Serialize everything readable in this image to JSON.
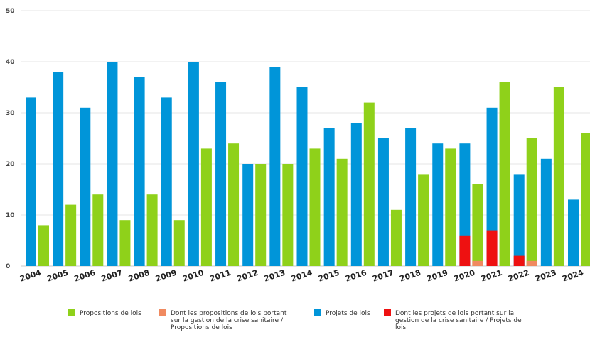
{
  "chart_data": {
    "type": "bar",
    "title": "",
    "xlabel": "",
    "ylabel": "",
    "ylim": [
      0,
      50
    ],
    "yticks": [
      0,
      10,
      20,
      30,
      40,
      50
    ],
    "grid": true,
    "legend_position": "bottom",
    "years": [
      "2004",
      "2005",
      "2006",
      "2007",
      "2008",
      "2009",
      "2010",
      "2011",
      "2012",
      "2013",
      "2014",
      "2015",
      "2016",
      "2017",
      "2018",
      "2019",
      "2020",
      "2021",
      "2022",
      "2023",
      "2024"
    ],
    "groups": [
      {
        "year": "2004",
        "projets": 33,
        "props": 8
      },
      {
        "year": "2005",
        "projets": 38,
        "props": 12
      },
      {
        "year": "2006",
        "projets": 31,
        "props": 14
      },
      {
        "year": "2007",
        "projets": 40,
        "props": 9
      },
      {
        "year": "2008",
        "projets": 37,
        "props": 14
      },
      {
        "year": "2009",
        "projets": 33,
        "props": 9
      },
      {
        "year": "2010",
        "projets": 40,
        "props": 23
      },
      {
        "year": "2011",
        "projets": 36,
        "props": 24
      },
      {
        "year": "2012",
        "projets": 20,
        "props": 20
      },
      {
        "year": "2013",
        "projets": 39,
        "props": 20
      },
      {
        "year": "2014",
        "projets": 35,
        "props": 23
      },
      {
        "year": "2015",
        "projets": 27,
        "props": 21
      },
      {
        "year": "2016",
        "projets": 28,
        "props": 32
      },
      {
        "year": "2017",
        "projets": 25,
        "props": 11
      },
      {
        "year": "2018",
        "projets": 27,
        "props": 18
      },
      {
        "year": "2019",
        "projets": 24,
        "props": 23
      },
      {
        "year": "2020",
        "projets": 24,
        "props": 16
      },
      {
        "year": "2021",
        "projets": 31,
        "props": 36
      },
      {
        "year": "2022",
        "projets": 18,
        "props": 25
      },
      {
        "year": "2023",
        "projets": 21,
        "props": 35
      },
      {
        "year": "2024",
        "projets": 13,
        "props": 26
      }
    ],
    "series": [
      {
        "name": "Propositions de lois",
        "color": "#8fd11a"
      },
      {
        "name": "Dont les propositions de lois portant sur la gestion de la crise sanitaire / Propositions de lois",
        "color": "#f08a60",
        "values": {
          "2020": 1,
          "2022": 1
        }
      },
      {
        "name": "Projets de lois",
        "color": "#0095d9"
      },
      {
        "name": "Dont les projets de lois portant sur la gestion de la crise sanitaire / Projets de lois",
        "color": "#ee1111",
        "values": {
          "2020": 6,
          "2021": 7,
          "2022": 2
        }
      }
    ]
  },
  "legend": [
    {
      "label_lines": [
        "Propositions de lois"
      ],
      "color": "#8fd11a"
    },
    {
      "label_lines": [
        "Dont les propositions de lois portant",
        "sur la gestion de la crise sanitaire /",
        "Propositions de lois"
      ],
      "color": "#f08a60"
    },
    {
      "label_lines": [
        "Projets de lois"
      ],
      "color": "#0095d9"
    },
    {
      "label_lines": [
        "Dont les projets de lois portant sur la",
        "gestion de la crise sanitaire / Projets de",
        "lois"
      ],
      "color": "#ee1111"
    }
  ]
}
